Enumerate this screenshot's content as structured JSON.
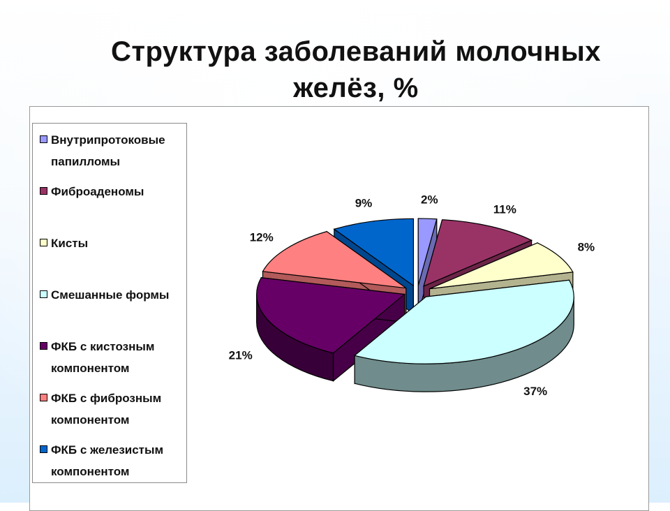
{
  "title_line1": "Структура заболеваний молочных",
  "title_line2": "желёз, %",
  "chart_data": {
    "type": "pie",
    "title": "Структура заболеваний молочных желёз, %",
    "legend_position": "left",
    "categories": [
      "Внутрипротоковые папилломы",
      "Фиброаденомы",
      "Кисты",
      "Смешанные формы",
      "ФКБ с кистозным компонентом",
      "ФКБ с фиброзным компонентом",
      "ФКБ с железистым компонентом"
    ],
    "values": [
      2,
      11,
      8,
      37,
      21,
      12,
      9
    ],
    "data_labels": [
      "2%",
      "11%",
      "8%",
      "37%",
      "21%",
      "12%",
      "9%"
    ],
    "colors": [
      "#9999ff",
      "#993366",
      "#ffffcc",
      "#ccffff",
      "#660066",
      "#ff8080",
      "#0066cc"
    ]
  },
  "legend": [
    {
      "line1": "Внутрипротоковые",
      "line2": "папилломы"
    },
    {
      "line1": "Фиброаденомы",
      "line2": ""
    },
    {
      "line1": "Кисты",
      "line2": ""
    },
    {
      "line1": "Смешанные формы",
      "line2": ""
    },
    {
      "line1": "ФКБ с кистозным",
      "line2": "компонентом"
    },
    {
      "line1": "ФКБ с фиброзным",
      "line2": "компонентом"
    },
    {
      "line1": "ФКБ с железистым",
      "line2": "компонентом"
    }
  ]
}
